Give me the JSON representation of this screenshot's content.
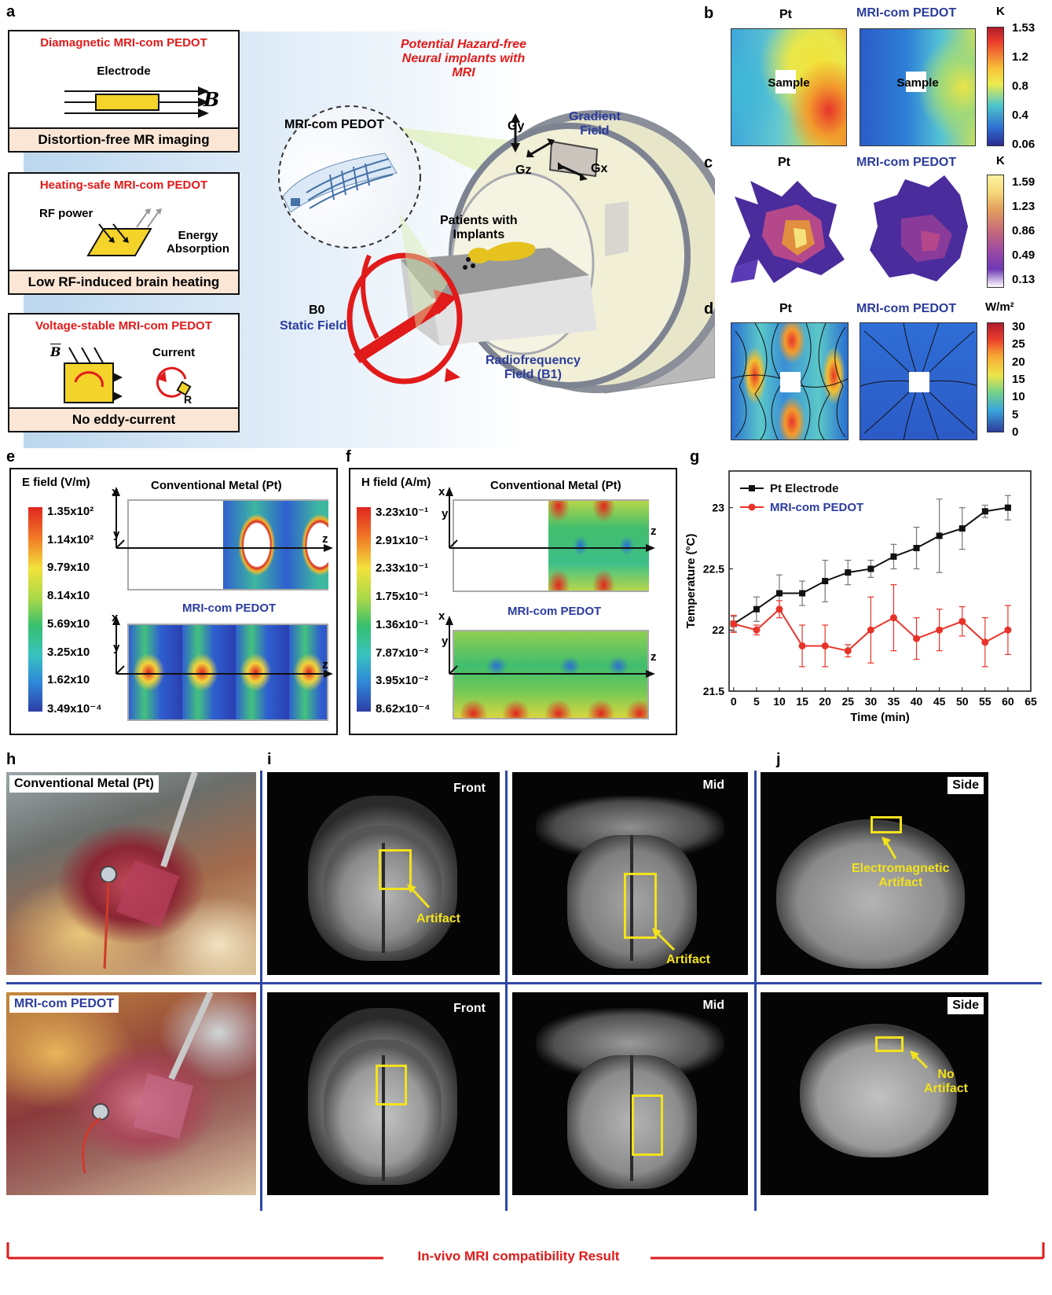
{
  "panel_labels": {
    "a": "a",
    "b": "b",
    "c": "c",
    "d": "d",
    "e": "e",
    "f": "f",
    "g": "g",
    "h": "h",
    "i": "i",
    "j": "j"
  },
  "panel_a": {
    "box1": {
      "title": "Diamagnetic MRI-com PEDOT",
      "electrode": "Electrode",
      "b_symbol": "B",
      "footer": "Distortion-free MR imaging"
    },
    "box2": {
      "title": "Heating-safe MRI-com PEDOT",
      "rf": "RF power",
      "energy1": "Energy",
      "energy2": "Absorption",
      "footer": "Low RF-induced brain heating"
    },
    "box3": {
      "title": "Voltage-stable MRI-com PEDOT",
      "b_symbol": "B",
      "current": "Current",
      "r": "R",
      "footer": "No eddy-current"
    },
    "headline1": "Potential Hazard-free",
    "headline2": "Neural implants with MRI",
    "inset_label": "MRI-com PEDOT",
    "gy": "Gy",
    "gz": "Gz",
    "gx": "Gx",
    "gradient1": "Gradient",
    "gradient2": "Field",
    "patients1": "Patients with",
    "patients2": "Implants",
    "b0": "B0",
    "static": "Static Field",
    "rf1": "Radiofrequency",
    "rf2": "Field (B1)"
  },
  "panel_b": {
    "left": "Pt",
    "right": "MRI-com PEDOT",
    "sample": "Sample",
    "unit": "K",
    "ticks": [
      "1.53",
      "1.2",
      "0.8",
      "0.4",
      "0.06"
    ]
  },
  "panel_c": {
    "left": "Pt",
    "right": "MRI-com PEDOT",
    "unit": "K",
    "ticks": [
      "1.59",
      "1.23",
      "0.86",
      "0.49",
      "0.13"
    ]
  },
  "panel_d": {
    "left": "Pt",
    "right": "MRI-com PEDOT",
    "unit": "W/m²",
    "ticks": [
      "30",
      "25",
      "20",
      "15",
      "10",
      "5",
      "0"
    ]
  },
  "panel_e": {
    "title": "E field (V/m)",
    "top": "Conventional Metal (Pt)",
    "bottom": "MRI-com PEDOT",
    "ticks": [
      "1.35x10²",
      "1.14x10²",
      "9.79x10",
      "8.14x10",
      "5.69x10",
      "3.25x10",
      "1.62x10",
      "3.49x10⁻⁴"
    ],
    "axes": {
      "x": "x",
      "y": "y",
      "z": "z"
    }
  },
  "panel_f": {
    "title": "H field (A/m)",
    "top": "Conventional Metal (Pt)",
    "bottom": "MRI-com PEDOT",
    "ticks": [
      "3.23x10⁻¹",
      "2.91x10⁻¹",
      "2.33x10⁻¹",
      "1.75x10⁻¹",
      "1.36x10⁻¹",
      "7.87x10⁻²",
      "3.95x10⁻²",
      "8.62x10⁻⁴"
    ],
    "axes": {
      "x": "x",
      "y": "y",
      "z": "z"
    }
  },
  "chart_data": {
    "type": "line",
    "xlabel": "Time (min)",
    "ylabel": "Temperature (°C)",
    "xlim": [
      -1,
      65
    ],
    "ylim": [
      21.5,
      23.3
    ],
    "xticks": [
      0,
      5,
      10,
      15,
      20,
      25,
      30,
      35,
      40,
      45,
      50,
      55,
      60,
      65
    ],
    "yticks": [
      21.5,
      22,
      22.5,
      23
    ],
    "legend_position": "top-left",
    "x": [
      0,
      5,
      10,
      15,
      20,
      25,
      30,
      35,
      40,
      45,
      50,
      55,
      60
    ],
    "series": [
      {
        "name": "Pt Electrode",
        "color": "#111111",
        "marker": "square",
        "values": [
          22.05,
          22.17,
          22.3,
          22.3,
          22.4,
          22.47,
          22.5,
          22.6,
          22.67,
          22.77,
          22.83,
          22.97,
          23.0
        ],
        "errors": [
          0.06,
          0.1,
          0.15,
          0.1,
          0.17,
          0.1,
          0.07,
          0.1,
          0.17,
          0.3,
          0.17,
          0.05,
          0.1
        ]
      },
      {
        "name": "MRI-com PEDOT",
        "color": "#e8332a",
        "marker": "circle",
        "values": [
          22.05,
          22.0,
          22.17,
          21.87,
          21.87,
          21.83,
          22.0,
          22.1,
          21.93,
          22.0,
          22.07,
          21.9,
          22.0
        ],
        "errors": [
          0.07,
          0.04,
          0.07,
          0.17,
          0.17,
          0.05,
          0.27,
          0.27,
          0.17,
          0.17,
          0.12,
          0.2,
          0.2
        ]
      }
    ]
  },
  "panel_h": {
    "top": "Conventional Metal (Pt)",
    "bottom": "MRI-com PEDOT"
  },
  "panel_i": {
    "front": "Front",
    "mid": "Mid",
    "artifact": "Artifact"
  },
  "panel_j": {
    "side": "Side",
    "em1": "Electromagnetic",
    "em2": "Artifact",
    "no1": "No",
    "no2": "Artifact"
  },
  "footer": "In-vivo MRI compatibility Result",
  "colors": {
    "accent_red": "#e11a1a",
    "accent_blue": "#2b3c9e",
    "divider_blue": "#2f47a8",
    "marker_yellow": "#f2e21b"
  }
}
